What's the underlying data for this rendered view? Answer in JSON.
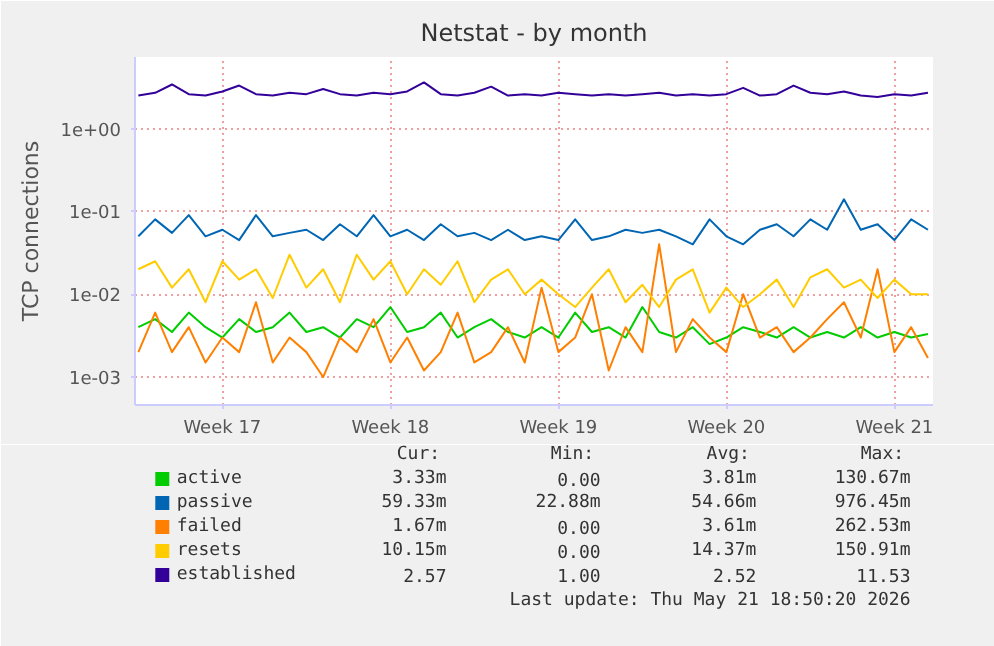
{
  "chart_data": {
    "type": "line",
    "title": "Netstat - by month",
    "ylabel": "TCP connections",
    "categories": [
      null,
      null,
      null,
      null,
      null,
      "Week 17",
      null,
      null,
      null,
      null,
      null,
      null,
      null,
      null,
      null,
      "Week 18",
      null,
      null,
      null,
      null,
      null,
      null,
      null,
      null,
      null,
      "Week 19",
      null,
      null,
      null,
      null,
      null,
      null,
      null,
      null,
      null,
      "Week 20",
      null,
      null,
      null,
      null,
      null,
      null,
      null,
      null,
      null,
      "Week 21",
      null,
      null
    ],
    "series": [
      {
        "name": "active",
        "color": "#00cc00",
        "values": [
          0.004,
          0.005,
          0.0035,
          0.006,
          0.004,
          0.003,
          0.005,
          0.0035,
          0.004,
          0.006,
          0.0035,
          0.004,
          0.003,
          0.005,
          0.004,
          0.007,
          0.0035,
          0.004,
          0.006,
          0.003,
          0.004,
          0.005,
          0.0035,
          0.003,
          0.004,
          0.003,
          0.006,
          0.0035,
          0.004,
          0.003,
          0.007,
          0.0035,
          0.003,
          0.004,
          0.0025,
          0.003,
          0.004,
          0.0035,
          0.003,
          0.004,
          0.003,
          0.0035,
          0.003,
          0.004,
          0.003,
          0.0035,
          0.003,
          0.0033
        ]
      },
      {
        "name": "passive",
        "color": "#0066b3",
        "values": [
          0.05,
          0.08,
          0.055,
          0.09,
          0.05,
          0.06,
          0.045,
          0.09,
          0.05,
          0.055,
          0.06,
          0.045,
          0.07,
          0.05,
          0.09,
          0.05,
          0.06,
          0.045,
          0.07,
          0.05,
          0.055,
          0.045,
          0.06,
          0.045,
          0.05,
          0.045,
          0.08,
          0.045,
          0.05,
          0.06,
          0.055,
          0.06,
          0.05,
          0.04,
          0.08,
          0.05,
          0.04,
          0.06,
          0.07,
          0.05,
          0.08,
          0.06,
          0.14,
          0.06,
          0.07,
          0.045,
          0.08,
          0.06
        ]
      },
      {
        "name": "failed",
        "color": "#ff8000",
        "values": [
          0.002,
          0.006,
          0.002,
          0.004,
          0.0015,
          0.003,
          0.002,
          0.008,
          0.0015,
          0.003,
          0.002,
          0.001,
          0.003,
          0.002,
          0.005,
          0.0015,
          0.003,
          0.0012,
          0.002,
          0.006,
          0.0015,
          0.002,
          0.004,
          0.0015,
          0.012,
          0.002,
          0.003,
          0.01,
          0.0012,
          0.004,
          0.002,
          0.04,
          0.002,
          0.005,
          0.003,
          0.002,
          0.01,
          0.003,
          0.004,
          0.002,
          0.003,
          0.005,
          0.008,
          0.003,
          0.02,
          0.002,
          0.004,
          0.0017
        ]
      },
      {
        "name": "resets",
        "color": "#ffcc00",
        "values": [
          0.02,
          0.025,
          0.012,
          0.02,
          0.008,
          0.025,
          0.015,
          0.02,
          0.009,
          0.03,
          0.012,
          0.02,
          0.008,
          0.03,
          0.015,
          0.025,
          0.01,
          0.02,
          0.013,
          0.025,
          0.008,
          0.015,
          0.02,
          0.01,
          0.015,
          0.01,
          0.007,
          0.012,
          0.02,
          0.008,
          0.013,
          0.007,
          0.015,
          0.02,
          0.006,
          0.012,
          0.007,
          0.01,
          0.015,
          0.007,
          0.016,
          0.02,
          0.012,
          0.015,
          0.009,
          0.015,
          0.01,
          0.01
        ]
      },
      {
        "name": "established",
        "color": "#330099",
        "values": [
          2.5,
          2.7,
          3.4,
          2.6,
          2.5,
          2.8,
          3.3,
          2.6,
          2.5,
          2.7,
          2.6,
          3.0,
          2.6,
          2.5,
          2.7,
          2.6,
          2.8,
          3.6,
          2.6,
          2.5,
          2.7,
          3.2,
          2.5,
          2.6,
          2.5,
          2.7,
          2.6,
          2.5,
          2.6,
          2.5,
          2.6,
          2.7,
          2.5,
          2.6,
          2.5,
          2.6,
          3.1,
          2.5,
          2.6,
          3.3,
          2.7,
          2.6,
          2.8,
          2.5,
          2.4,
          2.6,
          2.5,
          2.7
        ]
      }
    ],
    "log": true,
    "ylim": [
      0.00046,
      7.3
    ],
    "yticks": [
      {
        "value": 0.001,
        "label": "1e-03"
      },
      {
        "value": 0.01,
        "label": "1e-02"
      },
      {
        "value": 0.1,
        "label": "1e-01"
      },
      {
        "value": 1,
        "label": "1e+00"
      }
    ],
    "grid": true,
    "legend": "bottom",
    "annotations": [
      "Cur:",
      "Min:",
      "Avg:",
      "Max:",
      "3.33m",
      "0.00",
      "3.81m",
      "130.67m",
      "59.33m",
      "22.88m",
      "54.66m",
      "976.45m",
      "1.67m",
      "0.00",
      "3.61m",
      "262.53m",
      "10.15m",
      "0.00",
      "14.37m",
      "150.91m",
      "2.57",
      "1.00",
      "2.52",
      "11.53",
      "Last update: Thu May 21 18:50:20 2026"
    ]
  }
}
